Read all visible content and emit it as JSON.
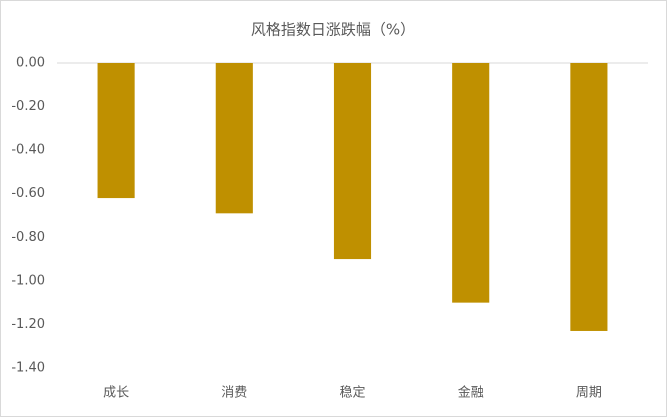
{
  "chart_data": {
    "type": "bar",
    "title": "风格指数日涨跌幅（%）",
    "categories": [
      "成长",
      "消费",
      "稳定",
      "金融",
      "周期"
    ],
    "values": [
      -0.62,
      -0.69,
      -0.9,
      -1.1,
      -1.23
    ],
    "color": "#bf9000",
    "ylim": [
      -1.4,
      0
    ],
    "yticks": [
      {
        "value": 0,
        "label": "0.00"
      },
      {
        "value": -0.2,
        "label": "-0.20"
      },
      {
        "value": -0.4,
        "label": "-0.40"
      },
      {
        "value": -0.6,
        "label": "-0.60"
      },
      {
        "value": -0.8,
        "label": "-0.80"
      },
      {
        "value": -1.0,
        "label": "-1.00"
      },
      {
        "value": -1.2,
        "label": "-1.20"
      },
      {
        "value": -1.4,
        "label": "-1.40"
      }
    ],
    "grid": false
  }
}
